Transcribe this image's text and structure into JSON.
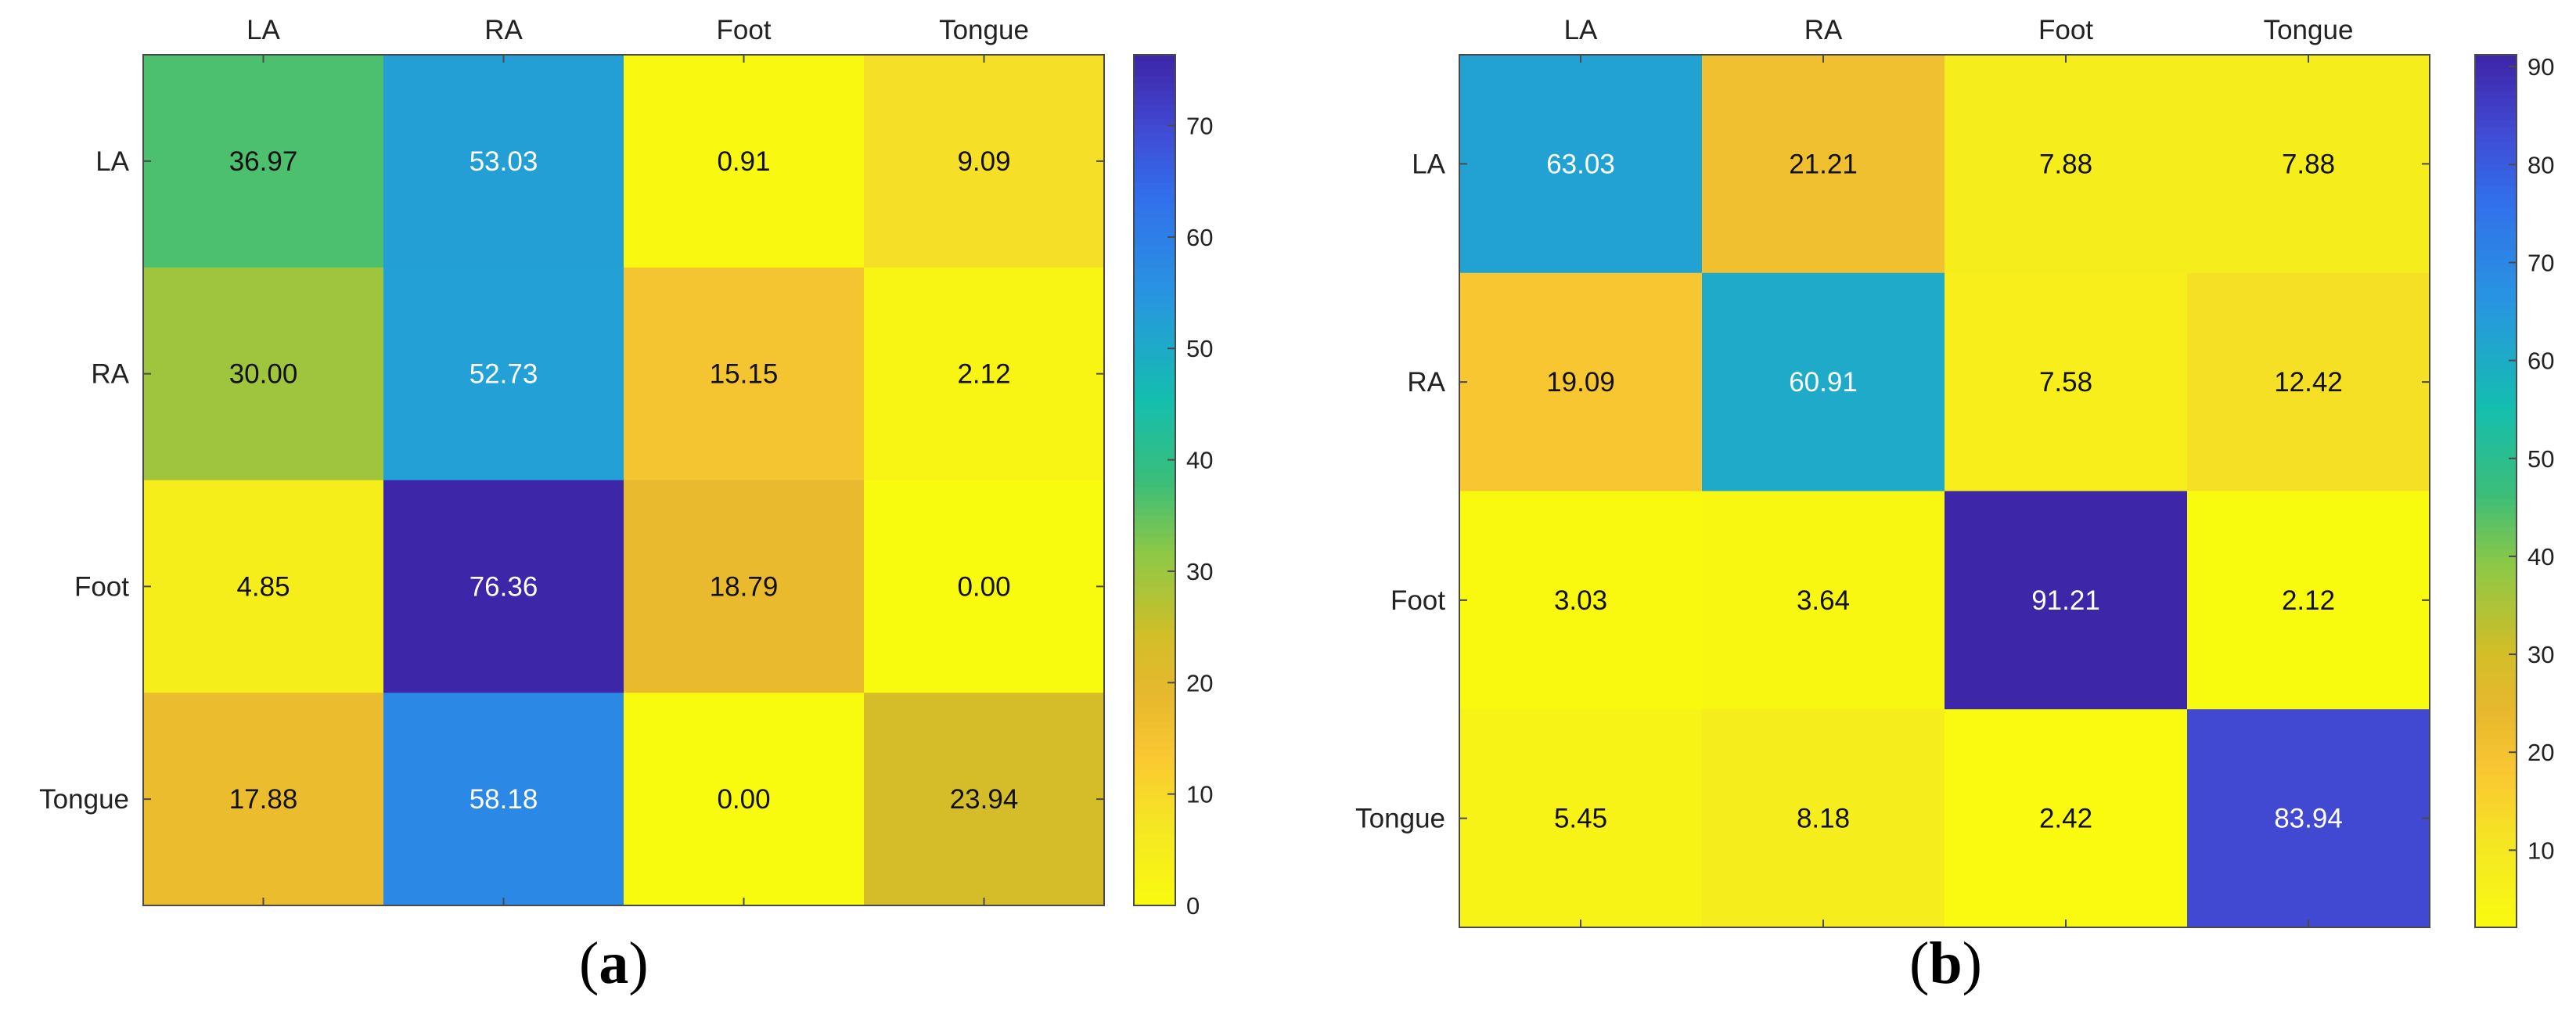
{
  "chart_data": [
    {
      "type": "heatmap",
      "panel": "a",
      "caption": "a",
      "categories": [
        "LA",
        "RA",
        "Foot",
        "Tongue"
      ],
      "rows": [
        "LA",
        "RA",
        "Foot",
        "Tongue"
      ],
      "values": [
        [
          36.97,
          53.03,
          0.91,
          9.09
        ],
        [
          30.0,
          52.73,
          15.15,
          2.12
        ],
        [
          4.85,
          76.36,
          18.79,
          0.0
        ],
        [
          17.88,
          58.18,
          0.0,
          23.94
        ]
      ],
      "colorbar": {
        "min": 0,
        "max": 76.36,
        "ticks": [
          "0",
          "10",
          "20",
          "30",
          "40",
          "50",
          "60",
          "70"
        ]
      },
      "colormap": "parula-reversed"
    },
    {
      "type": "heatmap",
      "panel": "b",
      "caption": "b",
      "categories": [
        "LA",
        "RA",
        "Foot",
        "Tongue"
      ],
      "rows": [
        "LA",
        "RA",
        "Foot",
        "Tongue"
      ],
      "values": [
        [
          63.03,
          21.21,
          7.88,
          7.88
        ],
        [
          19.09,
          60.91,
          7.58,
          12.42
        ],
        [
          3.03,
          3.64,
          91.21,
          2.12
        ],
        [
          5.45,
          8.18,
          2.42,
          83.94
        ]
      ],
      "colorbar": {
        "min": 2.12,
        "max": 91.21,
        "ticks": [
          "10",
          "20",
          "30",
          "40",
          "50",
          "60",
          "70",
          "80",
          "90"
        ]
      },
      "colormap": "parula-reversed"
    }
  ]
}
